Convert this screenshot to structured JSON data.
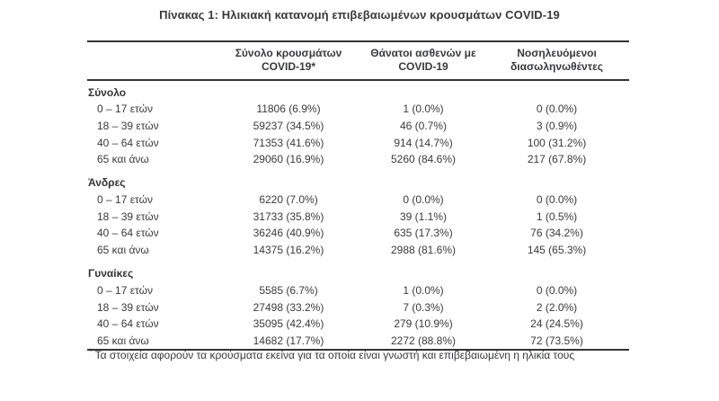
{
  "colors": {
    "background": "#ffffff",
    "text": "#3a3a3c",
    "rule_line": "#343436"
  },
  "title": "Πίνακας 1: Ηλικιακή κατανομή επιβεβαιωμένων κρουσμάτων COVID-19",
  "table": {
    "columns": [
      {
        "line1": "Σύνολο κρουσμάτων",
        "line2": "COVID-19*"
      },
      {
        "line1": "Θάνατοι ασθενών με",
        "line2": "COVID-19"
      },
      {
        "line1": "Νοσηλευόμενοι",
        "line2": "διασωληνωθέντες"
      }
    ],
    "sections": [
      {
        "name": "Σύνολο",
        "rows": [
          {
            "age": "0 – 17 ετών",
            "cases": "11806 (6.9%)",
            "deaths": "1 (0.0%)",
            "intubated": "0 (0.0%)"
          },
          {
            "age": "18 – 39 ετών",
            "cases": "59237 (34.5%)",
            "deaths": "46 (0.7%)",
            "intubated": "3 (0.9%)"
          },
          {
            "age": "40 – 64 ετών",
            "cases": "71353 (41.6%)",
            "deaths": "914 (14.7%)",
            "intubated": "100 (31.2%)"
          },
          {
            "age": "65 και άνω",
            "cases": "29060 (16.9%)",
            "deaths": "5260 (84.6%)",
            "intubated": "217 (67.8%)"
          }
        ]
      },
      {
        "name": "Άνδρες",
        "rows": [
          {
            "age": "0 – 17 ετών",
            "cases": "6220 (7.0%)",
            "deaths": "0 (0.0%)",
            "intubated": "0 (0.0%)"
          },
          {
            "age": "18 – 39 ετών",
            "cases": "31733 (35.8%)",
            "deaths": "39 (1.1%)",
            "intubated": "1 (0.5%)"
          },
          {
            "age": "40 – 64 ετών",
            "cases": "36246 (40.9%)",
            "deaths": "635 (17.3%)",
            "intubated": "76 (34.2%)"
          },
          {
            "age": "65 και άνω",
            "cases": "14375 (16.2%)",
            "deaths": "2988 (81.6%)",
            "intubated": "145 (65.3%)"
          }
        ]
      },
      {
        "name": "Γυναίκες",
        "rows": [
          {
            "age": "0 – 17 ετών",
            "cases": "5585 (6.7%)",
            "deaths": "1 (0.0%)",
            "intubated": "0 (0.0%)"
          },
          {
            "age": "18 – 39 ετών",
            "cases": "27498 (33.2%)",
            "deaths": "7 (0.3%)",
            "intubated": "2 (2.0%)"
          },
          {
            "age": "40 – 64 ετών",
            "cases": "35095 (42.4%)",
            "deaths": "279 (10.9%)",
            "intubated": "24 (24.5%)"
          },
          {
            "age": "65 και άνω",
            "cases": "14682 (17.7%)",
            "deaths": "2272 (88.8%)",
            "intubated": "72 (73.5%)"
          }
        ]
      }
    ]
  },
  "footnote": {
    "marker": "*",
    "text": "Τα στοιχεία αφορούν τα κρούσματα εκείνα για τα οποία είναι γνωστή και επιβεβαιωμένη η ηλικία τους"
  }
}
